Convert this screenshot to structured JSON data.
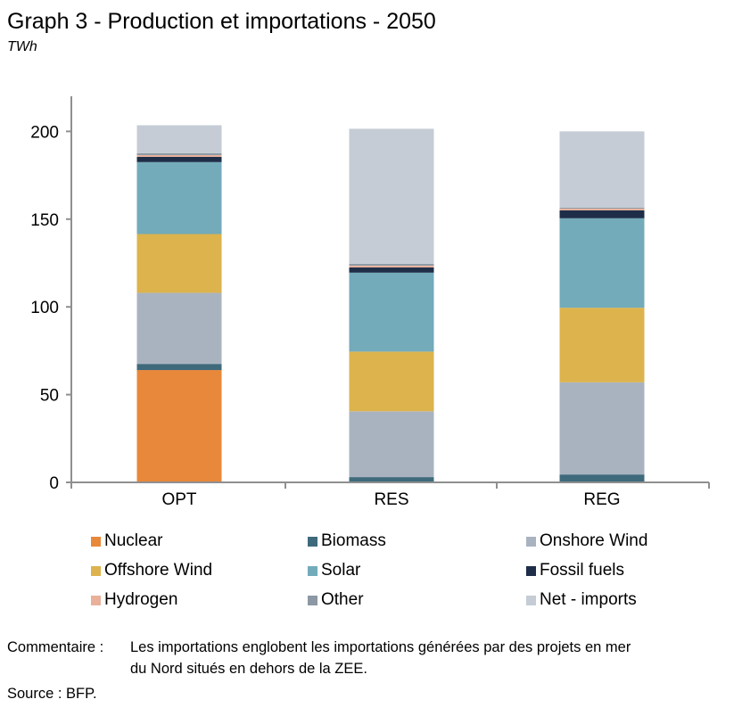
{
  "title": "Graph 3 - Production et importations - 2050",
  "unit": "TWh",
  "chart_data": {
    "type": "bar",
    "stacked": true,
    "categories": [
      "OPT",
      "RES",
      "REG"
    ],
    "ylim": [
      0,
      220
    ],
    "yticks": [
      0,
      50,
      100,
      150,
      200
    ],
    "series": [
      {
        "name": "Nuclear",
        "color": "#e8883a",
        "values": [
          64,
          0,
          0
        ]
      },
      {
        "name": "Biomass",
        "color": "#3f6a7c",
        "values": [
          3.5,
          3,
          4.5
        ]
      },
      {
        "name": "Onshore Wind",
        "color": "#a9b3c0",
        "values": [
          40.5,
          37.5,
          52.5
        ]
      },
      {
        "name": "Offshore Wind",
        "color": "#dcb34d",
        "values": [
          33.5,
          34,
          42.5
        ]
      },
      {
        "name": "Solar",
        "color": "#73abba",
        "values": [
          41,
          45,
          51
        ]
      },
      {
        "name": "Fossil fuels",
        "color": "#1e2e48",
        "values": [
          3,
          3,
          4.5
        ]
      },
      {
        "name": "Hydrogen",
        "color": "#e9b09a",
        "values": [
          1,
          1,
          1
        ]
      },
      {
        "name": "Other",
        "color": "#8c98a4",
        "values": [
          1,
          1,
          0.5
        ]
      },
      {
        "name": "Net - imports",
        "color": "#c5ccd5",
        "values": [
          16,
          77,
          43.5
        ]
      }
    ]
  },
  "legend": {
    "items": [
      {
        "label": "Nuclear",
        "color": "#e8883a"
      },
      {
        "label": "Biomass",
        "color": "#3f6a7c"
      },
      {
        "label": "Onshore Wind",
        "color": "#a9b3c0"
      },
      {
        "label": "Offshore Wind",
        "color": "#dcb34d"
      },
      {
        "label": "Solar",
        "color": "#73abba"
      },
      {
        "label": "Fossil fuels",
        "color": "#1e2e48"
      },
      {
        "label": "Hydrogen",
        "color": "#e9b09a"
      },
      {
        "label": "Other",
        "color": "#8c98a4"
      },
      {
        "label": "Net - imports",
        "color": "#c5ccd5"
      }
    ]
  },
  "notes": {
    "comment_label": "Commentaire :",
    "comment_line1": "Les importations englobent les importations générées par des projets en mer",
    "comment_line2": "du Nord situés en dehors de la ZEE.",
    "source": "Source : BFP."
  }
}
